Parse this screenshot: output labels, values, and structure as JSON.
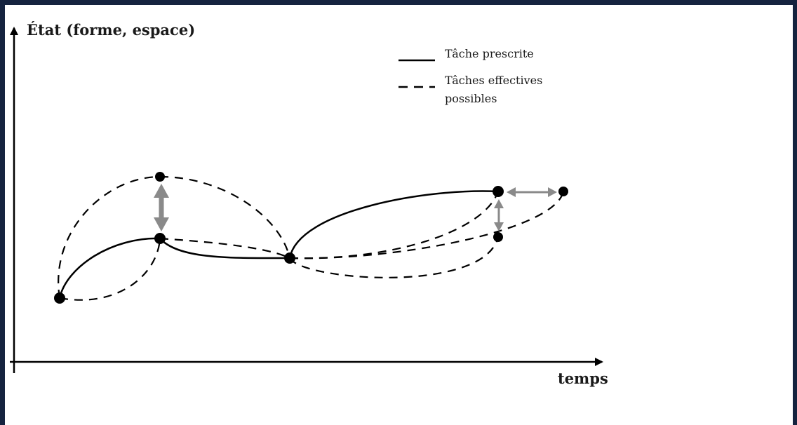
{
  "diagram": {
    "y_axis_label": "État (forme, espace)",
    "x_axis_label": "temps",
    "legend": {
      "solid": "Tâche prescrite",
      "dashed_line1": "Tâches effectives",
      "dashed_line2": "possibles"
    },
    "colors": {
      "frame": "#15233f",
      "ink": "#000000",
      "double_arrows": "#8a8a8a"
    }
  }
}
